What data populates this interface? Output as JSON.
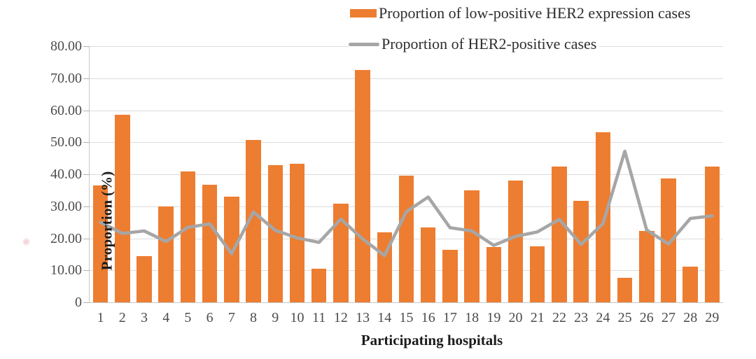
{
  "legend": {
    "items": [
      {
        "label": "Proportion of low-positive HER2 expression cases",
        "swatch": "bar",
        "color": "#ED7D31"
      },
      {
        "label": "Proportion of HER2-positive cases",
        "swatch": "line",
        "color": "#A6A6A6"
      }
    ]
  },
  "axes": {
    "ytick_labels": [
      "0",
      "10.00",
      "20.00",
      "30.00",
      "40.00",
      "50.00",
      "60.00",
      "70.00",
      "80.00"
    ]
  },
  "chart_data": {
    "type": "bar",
    "title": "",
    "xlabel": "Participating hospitals",
    "ylabel": "Proportion (%)",
    "ylim": [
      0,
      80
    ],
    "ytick_interval": 10,
    "grid": true,
    "legend_position": "top-right",
    "categories": [
      "1",
      "2",
      "3",
      "4",
      "5",
      "6",
      "7",
      "8",
      "9",
      "10",
      "11",
      "12",
      "13",
      "14",
      "15",
      "16",
      "17",
      "18",
      "19",
      "20",
      "21",
      "22",
      "23",
      "24",
      "25",
      "26",
      "27",
      "28",
      "29"
    ],
    "series": [
      {
        "name": "Proportion of low-positive HER2 expression cases",
        "type": "bar",
        "color": "#ED7D31",
        "values": [
          36.6,
          58.6,
          14.4,
          29.9,
          40.9,
          36.7,
          33.0,
          50.8,
          42.9,
          43.2,
          10.6,
          30.9,
          72.6,
          21.9,
          39.6,
          23.3,
          16.5,
          34.9,
          17.2,
          38.1,
          17.5,
          42.3,
          31.6,
          53.1,
          7.7,
          22.4,
          38.7,
          11.2,
          42.5
        ]
      },
      {
        "name": "Proportion of HER2-positive cases",
        "type": "line",
        "color": "#A6A6A6",
        "values": [
          25.0,
          21.5,
          22.3,
          19.0,
          23.4,
          24.5,
          15.2,
          28.2,
          22.5,
          20.1,
          18.7,
          26.0,
          19.8,
          14.6,
          28.3,
          32.9,
          23.3,
          22.3,
          17.8,
          20.6,
          22.0,
          25.9,
          18.1,
          24.6,
          47.2,
          22.6,
          18.2,
          26.2,
          27.0
        ]
      }
    ]
  }
}
